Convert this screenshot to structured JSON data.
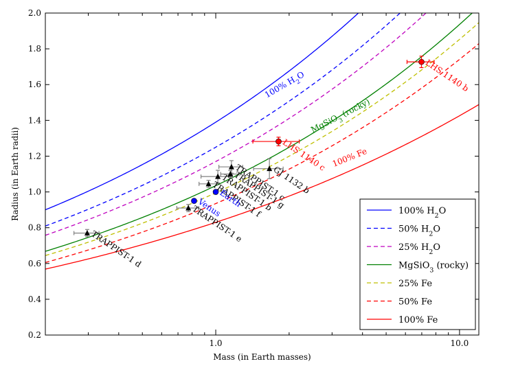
{
  "chart_data": {
    "type": "scatter",
    "xlabel": "Mass (in Earth masses)",
    "ylabel": "Radius (in Earth radii)",
    "xscale": "log",
    "xlim": [
      0.2,
      12
    ],
    "ylim": [
      0.2,
      2.0
    ],
    "grid": false,
    "legend_position": "bottom-right",
    "x_ticks": [
      {
        "value": 1.0,
        "label": "1.0"
      },
      {
        "value": 10.0,
        "label": "10.0"
      }
    ],
    "y_ticks": [
      {
        "value": 0.2,
        "label": "0.2"
      },
      {
        "value": 0.4,
        "label": "0.4"
      },
      {
        "value": 0.6,
        "label": "0.6"
      },
      {
        "value": 0.8,
        "label": "0.8"
      },
      {
        "value": 1.0,
        "label": "1.0"
      },
      {
        "value": 1.2,
        "label": "1.2"
      },
      {
        "value": 1.4,
        "label": "1.4"
      },
      {
        "value": 1.6,
        "label": "1.6"
      },
      {
        "value": 1.8,
        "label": "1.8"
      },
      {
        "value": 2.0,
        "label": "2.0"
      }
    ],
    "curves": [
      {
        "name": "100% H₂O",
        "sub": "2",
        "pre": "100% H",
        "post": "O",
        "color": "#0000ff",
        "dash": "solid",
        "r1": 1.39,
        "n": 0.27,
        "xmax": 12
      },
      {
        "name": "50% H₂O",
        "pre": "50% H",
        "sub": "2",
        "post": "O",
        "color": "#0000ff",
        "dash": "dashed",
        "r1": 1.25,
        "n": 0.27,
        "xmax": 12
      },
      {
        "name": "25% H₂O",
        "pre": "25% H",
        "sub": "2",
        "post": "O",
        "color": "#bf00bf",
        "dash": "dashed",
        "r1": 1.17,
        "n": 0.27,
        "xmax": 12
      },
      {
        "name": "MgSiO₃ (rocky)",
        "pre": "MgSiO",
        "sub": "3",
        "post": " (rocky)",
        "color": "#008000",
        "dash": "solid",
        "r1": 1.035,
        "n": 0.272,
        "xmax": 12
      },
      {
        "name": "25% Fe",
        "pre": "25% Fe",
        "sub": "",
        "post": "",
        "color": "#bfbf00",
        "dash": "dashed",
        "r1": 0.995,
        "n": 0.27,
        "xmax": 12
      },
      {
        "name": "50% Fe",
        "pre": "50% Fe",
        "sub": "",
        "post": "",
        "color": "#ff0000",
        "dash": "dashed",
        "r1": 0.935,
        "n": 0.27,
        "xmax": 12
      },
      {
        "name": "100% Fe",
        "pre": "100% Fe",
        "sub": "",
        "post": "",
        "color": "#ff0000",
        "dash": "solid",
        "r1": 0.83,
        "n": 0.235,
        "xmax": 12
      }
    ],
    "curve_labels": [
      {
        "pre": "100% H",
        "sub": "2",
        "post": "O",
        "color": "#0000ff",
        "x": 1.62,
        "y": 1.525,
        "angle": -30
      },
      {
        "pre": "MgSiO",
        "sub": "3",
        "post": " (rocky)",
        "color": "#008000",
        "x": 2.5,
        "y": 1.33,
        "angle": -27
      },
      {
        "pre": "100% Fe",
        "sub": "",
        "post": "",
        "color": "#ff0000",
        "x": 3.05,
        "y": 1.14,
        "angle": -22
      }
    ],
    "points": [
      {
        "name": "TRAPPIST-1 b",
        "x": 1.02,
        "y": 1.086,
        "xerr": [
          0.15,
          0.15
        ],
        "yerr": [
          0.035,
          0.035
        ],
        "marker": "triangle",
        "color": "#000000",
        "label_color": "#000000"
      },
      {
        "name": "TRAPPIST-1 c",
        "x": 1.16,
        "y": 1.14,
        "xerr": [
          0.13,
          0.13
        ],
        "yerr": [
          0.035,
          0.035
        ],
        "marker": "triangle",
        "color": "#000000",
        "label_color": "#000000"
      },
      {
        "name": "TRAPPIST-1 d",
        "x": 0.297,
        "y": 0.77,
        "xerr": [
          0.035,
          0.035
        ],
        "yerr": [
          0.02,
          0.02
        ],
        "marker": "triangle",
        "color": "#000000",
        "label_color": "#000000"
      },
      {
        "name": "TRAPPIST-1 e",
        "x": 0.772,
        "y": 0.91,
        "xerr": [
          0.08,
          0.08
        ],
        "yerr": [
          0.02,
          0.02
        ],
        "marker": "triangle",
        "color": "#000000",
        "label_color": "#000000"
      },
      {
        "name": "TRAPPIST-1 f",
        "x": 0.934,
        "y": 1.045,
        "xerr": [
          0.08,
          0.08
        ],
        "yerr": [
          0.02,
          0.02
        ],
        "marker": "triangle",
        "color": "#000000",
        "label_color": "#000000"
      },
      {
        "name": "TRAPPIST-1 g",
        "x": 1.148,
        "y": 1.1,
        "xerr": [
          0.1,
          0.1
        ],
        "yerr": [
          0.02,
          0.02
        ],
        "marker": "triangle",
        "color": "#000000",
        "label_color": "#000000"
      },
      {
        "name": "GJ 1132 b",
        "x": 1.66,
        "y": 1.13,
        "xerr": [
          0.23,
          0.23
        ],
        "yerr": [
          0.056,
          0.056
        ],
        "marker": "triangle",
        "color": "#000000",
        "label_color": "#000000"
      },
      {
        "name": "Venus",
        "x": 0.815,
        "y": 0.95,
        "xerr": [
          0,
          0
        ],
        "yerr": [
          0,
          0
        ],
        "marker": "circle",
        "color": "#0000ff",
        "label_color": "#0000ff"
      },
      {
        "name": "Earth",
        "x": 1.0,
        "y": 1.0,
        "xerr": [
          0,
          0
        ],
        "yerr": [
          0,
          0
        ],
        "marker": "circle",
        "color": "#0000ff",
        "label_color": "#0000ff"
      },
      {
        "name": "LHS 1140 c",
        "x": 1.81,
        "y": 1.282,
        "xerr": [
          0.39,
          0.39
        ],
        "yerr": [
          0.024,
          0.024
        ],
        "marker": "circle",
        "color": "#ff0000",
        "label_color": "#ff0000"
      },
      {
        "name": "LHS 1140 b",
        "x": 6.98,
        "y": 1.727,
        "xerr": [
          0.89,
          0.89
        ],
        "yerr": [
          0.032,
          0.032
        ],
        "marker": "circle",
        "color": "#ff0000",
        "label_color": "#ff0000"
      }
    ]
  }
}
